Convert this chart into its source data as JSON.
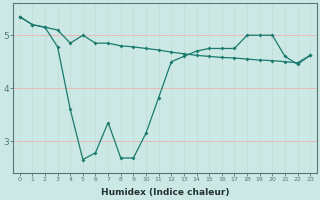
{
  "xlabel": "Humidex (Indice chaleur)",
  "background_color": "#cce8e4",
  "grid_color_v": "#c4deda",
  "grid_color_h": "#e8b8b8",
  "line_color": "#1a7a6e",
  "xlim": [
    -0.5,
    23.5
  ],
  "ylim": [
    2.4,
    5.6
  ],
  "yticks": [
    3,
    4,
    5
  ],
  "xticks": [
    0,
    1,
    2,
    3,
    4,
    5,
    6,
    7,
    8,
    9,
    10,
    11,
    12,
    13,
    14,
    15,
    16,
    17,
    18,
    19,
    20,
    21,
    22,
    23
  ],
  "series1": [
    5.35,
    5.2,
    5.15,
    4.78,
    3.6,
    2.65,
    2.78,
    3.35,
    2.68,
    2.68,
    3.15,
    3.82,
    4.5,
    4.6,
    4.7,
    4.75,
    4.75,
    4.75,
    5.0,
    5.0,
    5.0,
    4.6,
    4.45,
    4.62
  ],
  "series2": [
    5.35,
    5.2,
    5.15,
    5.1,
    4.85,
    5.0,
    4.85,
    4.85,
    4.8,
    4.78,
    4.75,
    4.72,
    4.68,
    4.65,
    4.62,
    4.6,
    4.58,
    4.57,
    4.55,
    4.53,
    4.52,
    4.5,
    4.48,
    4.62
  ]
}
